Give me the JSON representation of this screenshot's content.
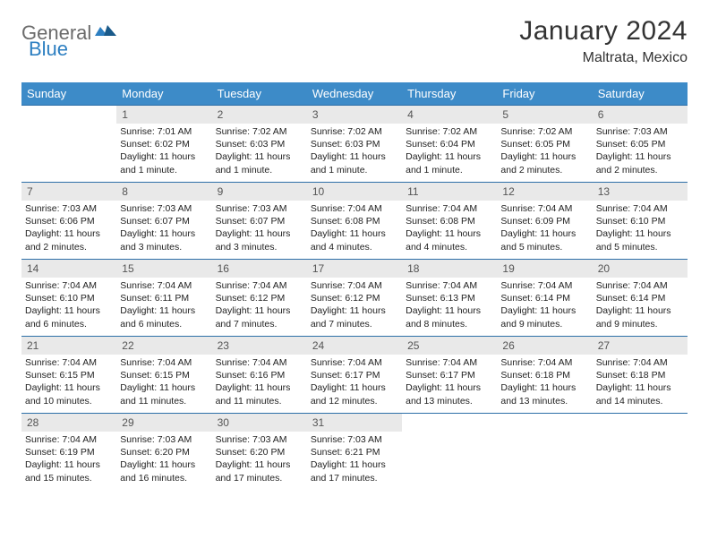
{
  "logo": {
    "part1": "General",
    "part2": "Blue"
  },
  "title": "January 2024",
  "subtitle": "Maltrata, Mexico",
  "colors": {
    "header_bg": "#3d8bc8",
    "header_text": "#ffffff",
    "row_border": "#2d6fa8",
    "daynum_bg": "#e9e9e9",
    "daynum_text": "#555555",
    "body_text": "#222222",
    "title_text": "#333333",
    "logo_gray": "#6b6b6b",
    "logo_blue": "#2d7fc1"
  },
  "weekdays": [
    "Sunday",
    "Monday",
    "Tuesday",
    "Wednesday",
    "Thursday",
    "Friday",
    "Saturday"
  ],
  "weeks": [
    [
      {
        "n": "",
        "sr": "",
        "ss": "",
        "dl": ""
      },
      {
        "n": "1",
        "sr": "Sunrise: 7:01 AM",
        "ss": "Sunset: 6:02 PM",
        "dl": "Daylight: 11 hours and 1 minute."
      },
      {
        "n": "2",
        "sr": "Sunrise: 7:02 AM",
        "ss": "Sunset: 6:03 PM",
        "dl": "Daylight: 11 hours and 1 minute."
      },
      {
        "n": "3",
        "sr": "Sunrise: 7:02 AM",
        "ss": "Sunset: 6:03 PM",
        "dl": "Daylight: 11 hours and 1 minute."
      },
      {
        "n": "4",
        "sr": "Sunrise: 7:02 AM",
        "ss": "Sunset: 6:04 PM",
        "dl": "Daylight: 11 hours and 1 minute."
      },
      {
        "n": "5",
        "sr": "Sunrise: 7:02 AM",
        "ss": "Sunset: 6:05 PM",
        "dl": "Daylight: 11 hours and 2 minutes."
      },
      {
        "n": "6",
        "sr": "Sunrise: 7:03 AM",
        "ss": "Sunset: 6:05 PM",
        "dl": "Daylight: 11 hours and 2 minutes."
      }
    ],
    [
      {
        "n": "7",
        "sr": "Sunrise: 7:03 AM",
        "ss": "Sunset: 6:06 PM",
        "dl": "Daylight: 11 hours and 2 minutes."
      },
      {
        "n": "8",
        "sr": "Sunrise: 7:03 AM",
        "ss": "Sunset: 6:07 PM",
        "dl": "Daylight: 11 hours and 3 minutes."
      },
      {
        "n": "9",
        "sr": "Sunrise: 7:03 AM",
        "ss": "Sunset: 6:07 PM",
        "dl": "Daylight: 11 hours and 3 minutes."
      },
      {
        "n": "10",
        "sr": "Sunrise: 7:04 AM",
        "ss": "Sunset: 6:08 PM",
        "dl": "Daylight: 11 hours and 4 minutes."
      },
      {
        "n": "11",
        "sr": "Sunrise: 7:04 AM",
        "ss": "Sunset: 6:08 PM",
        "dl": "Daylight: 11 hours and 4 minutes."
      },
      {
        "n": "12",
        "sr": "Sunrise: 7:04 AM",
        "ss": "Sunset: 6:09 PM",
        "dl": "Daylight: 11 hours and 5 minutes."
      },
      {
        "n": "13",
        "sr": "Sunrise: 7:04 AM",
        "ss": "Sunset: 6:10 PM",
        "dl": "Daylight: 11 hours and 5 minutes."
      }
    ],
    [
      {
        "n": "14",
        "sr": "Sunrise: 7:04 AM",
        "ss": "Sunset: 6:10 PM",
        "dl": "Daylight: 11 hours and 6 minutes."
      },
      {
        "n": "15",
        "sr": "Sunrise: 7:04 AM",
        "ss": "Sunset: 6:11 PM",
        "dl": "Daylight: 11 hours and 6 minutes."
      },
      {
        "n": "16",
        "sr": "Sunrise: 7:04 AM",
        "ss": "Sunset: 6:12 PM",
        "dl": "Daylight: 11 hours and 7 minutes."
      },
      {
        "n": "17",
        "sr": "Sunrise: 7:04 AM",
        "ss": "Sunset: 6:12 PM",
        "dl": "Daylight: 11 hours and 7 minutes."
      },
      {
        "n": "18",
        "sr": "Sunrise: 7:04 AM",
        "ss": "Sunset: 6:13 PM",
        "dl": "Daylight: 11 hours and 8 minutes."
      },
      {
        "n": "19",
        "sr": "Sunrise: 7:04 AM",
        "ss": "Sunset: 6:14 PM",
        "dl": "Daylight: 11 hours and 9 minutes."
      },
      {
        "n": "20",
        "sr": "Sunrise: 7:04 AM",
        "ss": "Sunset: 6:14 PM",
        "dl": "Daylight: 11 hours and 9 minutes."
      }
    ],
    [
      {
        "n": "21",
        "sr": "Sunrise: 7:04 AM",
        "ss": "Sunset: 6:15 PM",
        "dl": "Daylight: 11 hours and 10 minutes."
      },
      {
        "n": "22",
        "sr": "Sunrise: 7:04 AM",
        "ss": "Sunset: 6:15 PM",
        "dl": "Daylight: 11 hours and 11 minutes."
      },
      {
        "n": "23",
        "sr": "Sunrise: 7:04 AM",
        "ss": "Sunset: 6:16 PM",
        "dl": "Daylight: 11 hours and 11 minutes."
      },
      {
        "n": "24",
        "sr": "Sunrise: 7:04 AM",
        "ss": "Sunset: 6:17 PM",
        "dl": "Daylight: 11 hours and 12 minutes."
      },
      {
        "n": "25",
        "sr": "Sunrise: 7:04 AM",
        "ss": "Sunset: 6:17 PM",
        "dl": "Daylight: 11 hours and 13 minutes."
      },
      {
        "n": "26",
        "sr": "Sunrise: 7:04 AM",
        "ss": "Sunset: 6:18 PM",
        "dl": "Daylight: 11 hours and 13 minutes."
      },
      {
        "n": "27",
        "sr": "Sunrise: 7:04 AM",
        "ss": "Sunset: 6:18 PM",
        "dl": "Daylight: 11 hours and 14 minutes."
      }
    ],
    [
      {
        "n": "28",
        "sr": "Sunrise: 7:04 AM",
        "ss": "Sunset: 6:19 PM",
        "dl": "Daylight: 11 hours and 15 minutes."
      },
      {
        "n": "29",
        "sr": "Sunrise: 7:03 AM",
        "ss": "Sunset: 6:20 PM",
        "dl": "Daylight: 11 hours and 16 minutes."
      },
      {
        "n": "30",
        "sr": "Sunrise: 7:03 AM",
        "ss": "Sunset: 6:20 PM",
        "dl": "Daylight: 11 hours and 17 minutes."
      },
      {
        "n": "31",
        "sr": "Sunrise: 7:03 AM",
        "ss": "Sunset: 6:21 PM",
        "dl": "Daylight: 11 hours and 17 minutes."
      },
      {
        "n": "",
        "sr": "",
        "ss": "",
        "dl": ""
      },
      {
        "n": "",
        "sr": "",
        "ss": "",
        "dl": ""
      },
      {
        "n": "",
        "sr": "",
        "ss": "",
        "dl": ""
      }
    ]
  ]
}
